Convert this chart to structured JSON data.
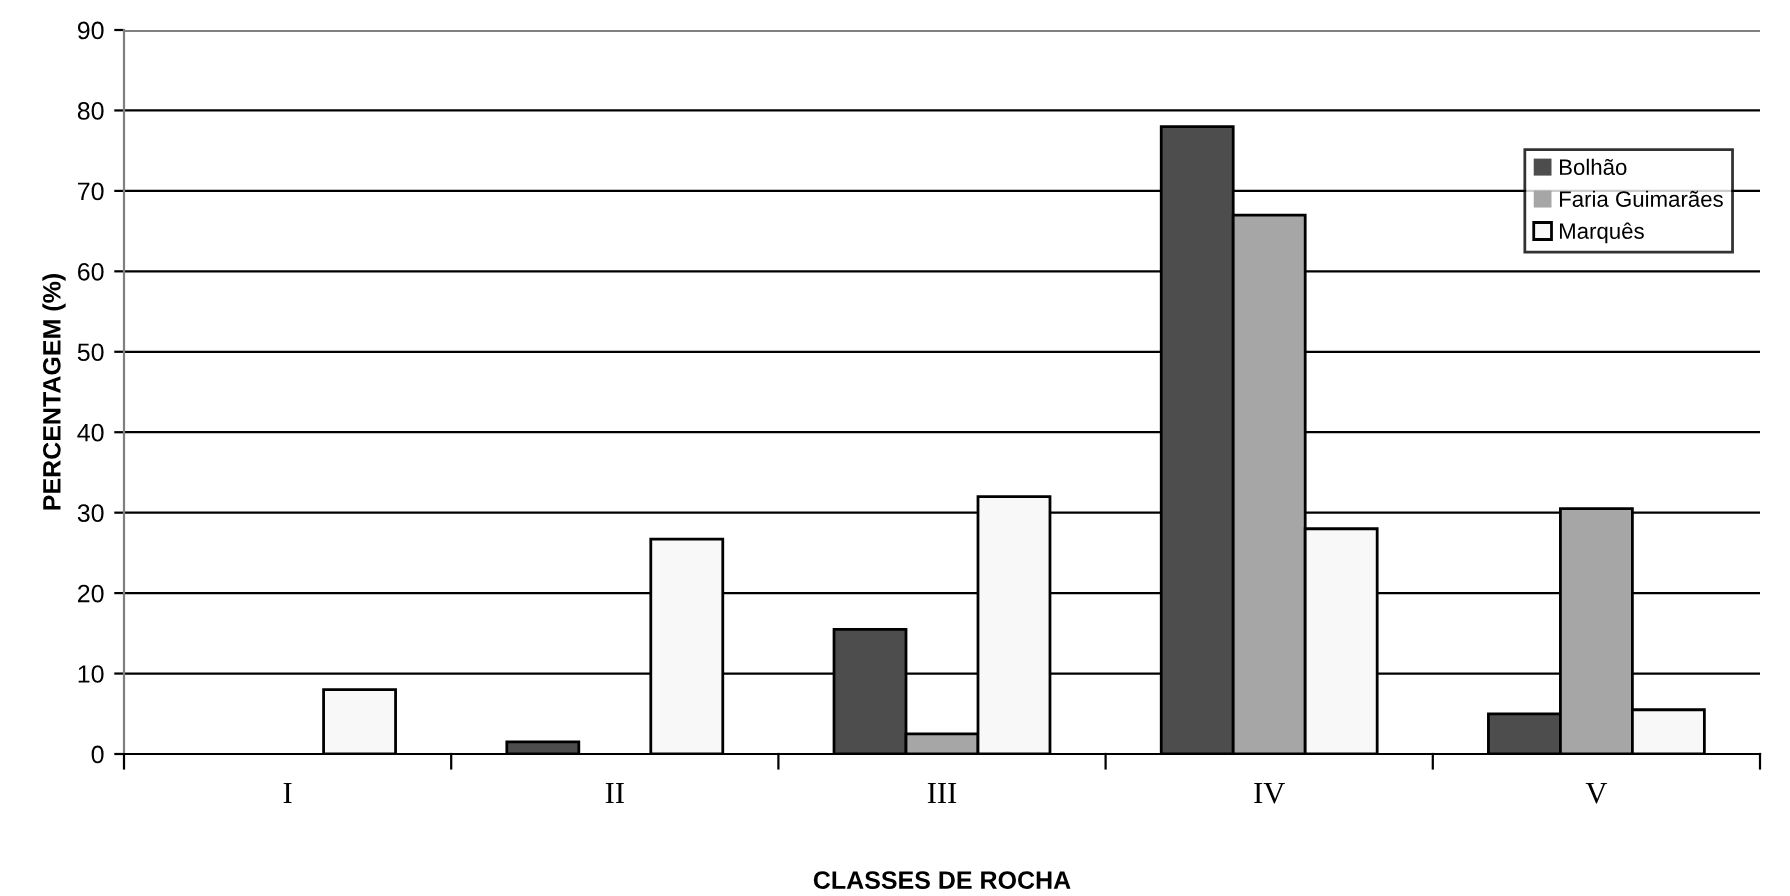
{
  "chart_data": {
    "type": "bar",
    "xlabel": "CLASSES DE ROCHA",
    "ylabel": "PERCENTAGEM (%)",
    "categories": [
      "I",
      "II",
      "III",
      "IV",
      "V"
    ],
    "series": [
      {
        "name": "Bolhão",
        "color": "#4d4d4d",
        "values": [
          0,
          1.5,
          15.5,
          78,
          5
        ]
      },
      {
        "name": "Faria Guimarães",
        "color": "#a6a6a6",
        "values": [
          0,
          0,
          2.5,
          67,
          30.5
        ]
      },
      {
        "name": "Marquês",
        "color": "#f8f8f8",
        "values": [
          8,
          26.7,
          32,
          28,
          5.5
        ]
      }
    ],
    "ylim": [
      0,
      90
    ],
    "yticks": [
      0,
      10,
      20,
      30,
      40,
      50,
      60,
      70,
      80,
      90
    ],
    "grid": "y",
    "legend": "top right"
  }
}
